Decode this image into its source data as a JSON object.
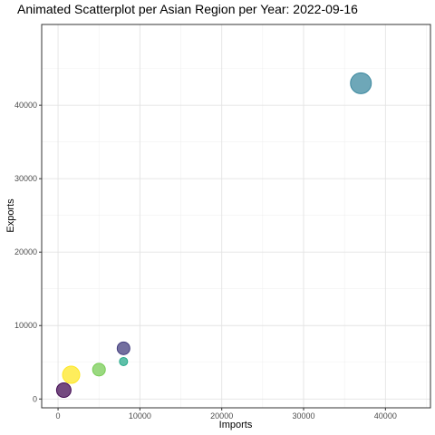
{
  "chart_data": {
    "type": "scatter",
    "title": "Animated Scatterplot per Asian Region per Year: 2022-09-16",
    "xlabel": "Imports",
    "ylabel": "Exports",
    "xlim": [
      -2000,
      45500
    ],
    "ylim": [
      -1200,
      51000
    ],
    "x_ticks": [
      0,
      10000,
      20000,
      30000,
      40000
    ],
    "y_ticks": [
      0,
      10000,
      20000,
      30000,
      40000
    ],
    "grid": true,
    "legend": "none",
    "points": [
      {
        "x": 37000,
        "y": 43000,
        "size": 11.5,
        "color": "#3e8aa0"
      },
      {
        "x": 8000,
        "y": 6900,
        "size": 7,
        "color": "#443f7f"
      },
      {
        "x": 8000,
        "y": 5100,
        "size": 4.5,
        "color": "#2aab8c"
      },
      {
        "x": 5000,
        "y": 4000,
        "size": 7,
        "color": "#78cc55"
      },
      {
        "x": 1600,
        "y": 3300,
        "size": 9.5,
        "color": "#fde725"
      },
      {
        "x": 700,
        "y": 1200,
        "size": 8,
        "color": "#440c54"
      }
    ]
  }
}
